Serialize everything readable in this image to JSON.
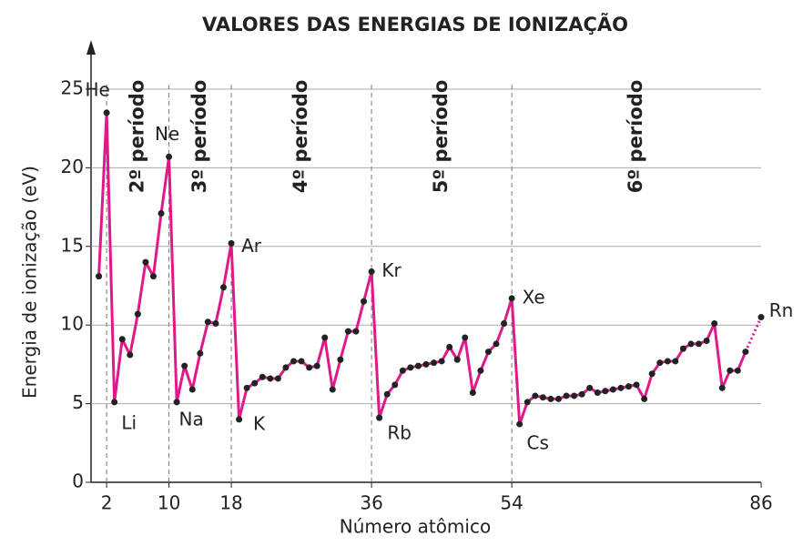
{
  "chart_data": {
    "type": "line",
    "title": "VALORES DAS ENERGIAS DE IONIZAÇÃO",
    "x_label": "Número atômico",
    "y_label": "Energia de ionização (eV)",
    "x": [
      1,
      2,
      3,
      4,
      5,
      6,
      7,
      8,
      9,
      10,
      11,
      12,
      13,
      14,
      15,
      16,
      17,
      18,
      19,
      20,
      21,
      22,
      23,
      24,
      25,
      26,
      27,
      28,
      29,
      30,
      31,
      32,
      33,
      34,
      35,
      36,
      37,
      38,
      39,
      40,
      41,
      42,
      43,
      44,
      45,
      46,
      47,
      48,
      49,
      50,
      51,
      52,
      53,
      54,
      55,
      56,
      57,
      58,
      59,
      60,
      61,
      62,
      63,
      64,
      65,
      66,
      67,
      68,
      69,
      70,
      71,
      72,
      73,
      74,
      75,
      76,
      77,
      78,
      79,
      80,
      81,
      82,
      83,
      84,
      85,
      86
    ],
    "series": [
      {
        "name": "Energia de ionização",
        "color": "#e0198a",
        "values": [
          13.1,
          23.5,
          5.1,
          9.1,
          8.1,
          10.7,
          14.0,
          13.1,
          17.1,
          20.7,
          5.1,
          7.4,
          5.9,
          8.2,
          10.2,
          10.1,
          12.4,
          15.2,
          4.0,
          6.0,
          6.3,
          6.7,
          6.6,
          6.6,
          7.3,
          7.7,
          7.7,
          7.3,
          7.4,
          9.2,
          5.9,
          7.8,
          9.6,
          9.6,
          11.5,
          13.4,
          4.1,
          5.6,
          6.2,
          7.1,
          7.3,
          7.4,
          7.5,
          7.6,
          7.7,
          8.6,
          7.8,
          9.2,
          5.7,
          7.1,
          8.3,
          8.8,
          10.1,
          11.7,
          3.7,
          5.1,
          5.5,
          5.4,
          5.3,
          5.3,
          5.5,
          5.5,
          5.6,
          6.0,
          5.7,
          5.8,
          5.9,
          6.0,
          6.1,
          6.2,
          5.3,
          6.9,
          7.6,
          7.7,
          7.7,
          8.5,
          8.8,
          8.8,
          9.0,
          10.1,
          6.0,
          7.1,
          7.1,
          8.3,
          null,
          10.5
        ]
      }
    ],
    "xlim": [
      0,
      86
    ],
    "xticks": [
      2,
      10,
      18,
      36,
      54,
      86
    ],
    "ylim": [
      0,
      25
    ],
    "yticks": [
      0,
      5,
      10,
      15,
      20,
      25
    ],
    "grid": true,
    "annotations": [
      {
        "text": "He",
        "x": 2
      },
      {
        "text": "Li",
        "x": 3
      },
      {
        "text": "Ne",
        "x": 10
      },
      {
        "text": "Na",
        "x": 11
      },
      {
        "text": "Ar",
        "x": 18
      },
      {
        "text": "K",
        "x": 19
      },
      {
        "text": "Kr",
        "x": 36
      },
      {
        "text": "Rb",
        "x": 37
      },
      {
        "text": "Xe",
        "x": 54
      },
      {
        "text": "Cs",
        "x": 55
      },
      {
        "text": "Rn",
        "x": 86
      }
    ],
    "periods": [
      {
        "label": "2º período",
        "start": 2,
        "end": 10
      },
      {
        "label": "3º período",
        "start": 10,
        "end": 18
      },
      {
        "label": "4º período",
        "start": 18,
        "end": 36
      },
      {
        "label": "5º período",
        "start": 36,
        "end": 54
      },
      {
        "label": "6º período",
        "start": 54,
        "end": 86
      }
    ]
  }
}
